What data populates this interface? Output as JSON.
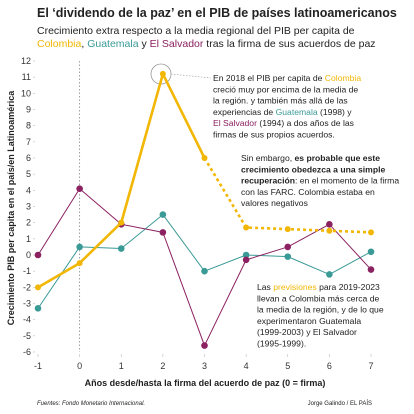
{
  "chart_data": {
    "type": "line",
    "title": "El ‘dividendo de la paz’ en el PIB de países latinoamericanos",
    "subtitle": [
      [
        {
          "text": "Crecimiento extra respecto a la media regional del PIB per capita de"
        }
      ],
      [
        {
          "text": "Colombia",
          "color": "#f2b705"
        },
        {
          "text": ", "
        },
        {
          "text": "Guatemala",
          "color": "#3a9a96"
        },
        {
          "text": " y "
        },
        {
          "text": "El Salvador",
          "color": "#8b2160"
        },
        {
          "text": " tras la firma de sus acuerdos de paz"
        }
      ]
    ],
    "x_label": "Años desde/hasta la firma del acuerdo de paz (0 = firma)",
    "y_label": "Crecimiento PIB per capita en el país/en Latinoamérica",
    "x": [
      -1,
      0,
      1,
      2,
      3,
      4,
      5,
      6,
      7
    ],
    "xlim": [
      -1,
      7
    ],
    "xticks": [
      -1,
      0,
      1,
      2,
      3,
      4,
      5,
      6,
      7
    ],
    "ylim": [
      -6,
      12
    ],
    "yticks": [
      -6,
      -5,
      -4,
      -3,
      -2,
      -1,
      0,
      1,
      2,
      3,
      4,
      5,
      6,
      7,
      8,
      9,
      10,
      11,
      12
    ],
    "series": [
      {
        "name": "Guatemala",
        "color": "#3a9a96",
        "values": [
          -3.3,
          0.5,
          0.4,
          2.5,
          -1,
          0,
          -0.1,
          -1.2,
          0.2
        ]
      },
      {
        "name": "El Salvador",
        "color": "#8b2160",
        "values": [
          0,
          4.1,
          1.9,
          1.4,
          -5.6,
          -0.3,
          0.5,
          1.9,
          -0.9
        ]
      },
      {
        "name": "Colombia",
        "color": "#f2b705",
        "values": [
          -2,
          -0.5,
          2,
          11.2,
          6,
          1.7,
          1.6,
          1.5,
          1.4
        ],
        "dashed_from_x": 3
      }
    ],
    "annotations": [
      [
        [
          {
            "text": "En 2018 el PIB per capita de "
          },
          {
            "text": "Colombia",
            "color": "#f2b705"
          }
        ],
        [
          {
            "text": "creció muy por encima de la media de"
          }
        ],
        [
          {
            "text": "la región. y también más allá de las"
          }
        ],
        [
          {
            "text": "experiencias de "
          },
          {
            "text": "Guatemala",
            "color": "#3a9a96"
          },
          {
            "text": " (1998) y"
          }
        ],
        [
          {
            "text": "El Salvador",
            "color": "#8b2160"
          },
          {
            "text": " (1994) a dos años de las"
          }
        ],
        [
          {
            "text": "firmas de sus propios acuerdos."
          }
        ]
      ],
      [
        [
          {
            "text": "Sin embargo, "
          },
          {
            "text": "es probable que este",
            "bold": true
          }
        ],
        [
          {
            "text": "crecimiento obedezca a una simple",
            "bold": true
          }
        ],
        [
          {
            "text": "recuperación",
            "bold": true
          },
          {
            "text": ": en el momento de la firma"
          }
        ],
        [
          {
            "text": "con las FARC. Colombia estaba en"
          }
        ],
        [
          {
            "text": "valores negativos"
          }
        ]
      ],
      [
        [
          {
            "text": "Las "
          },
          {
            "text": "previsiones",
            "color": "#f2b705"
          },
          {
            "text": " para 2019-2023"
          }
        ],
        [
          {
            "text": "llevan a Colombia más cerca de"
          }
        ],
        [
          {
            "text": "la media de la región, y de lo que"
          }
        ],
        [
          {
            "text": "experimentaron Guatemala"
          }
        ],
        [
          {
            "text": "(1999-2003) y El Salvador"
          }
        ],
        [
          {
            "text": "(1995-1999)."
          }
        ]
      ]
    ],
    "source": "Fuentes: Fondo Monetario Internacional.",
    "credit": "Jorge Galindo / EL PAÍS"
  }
}
